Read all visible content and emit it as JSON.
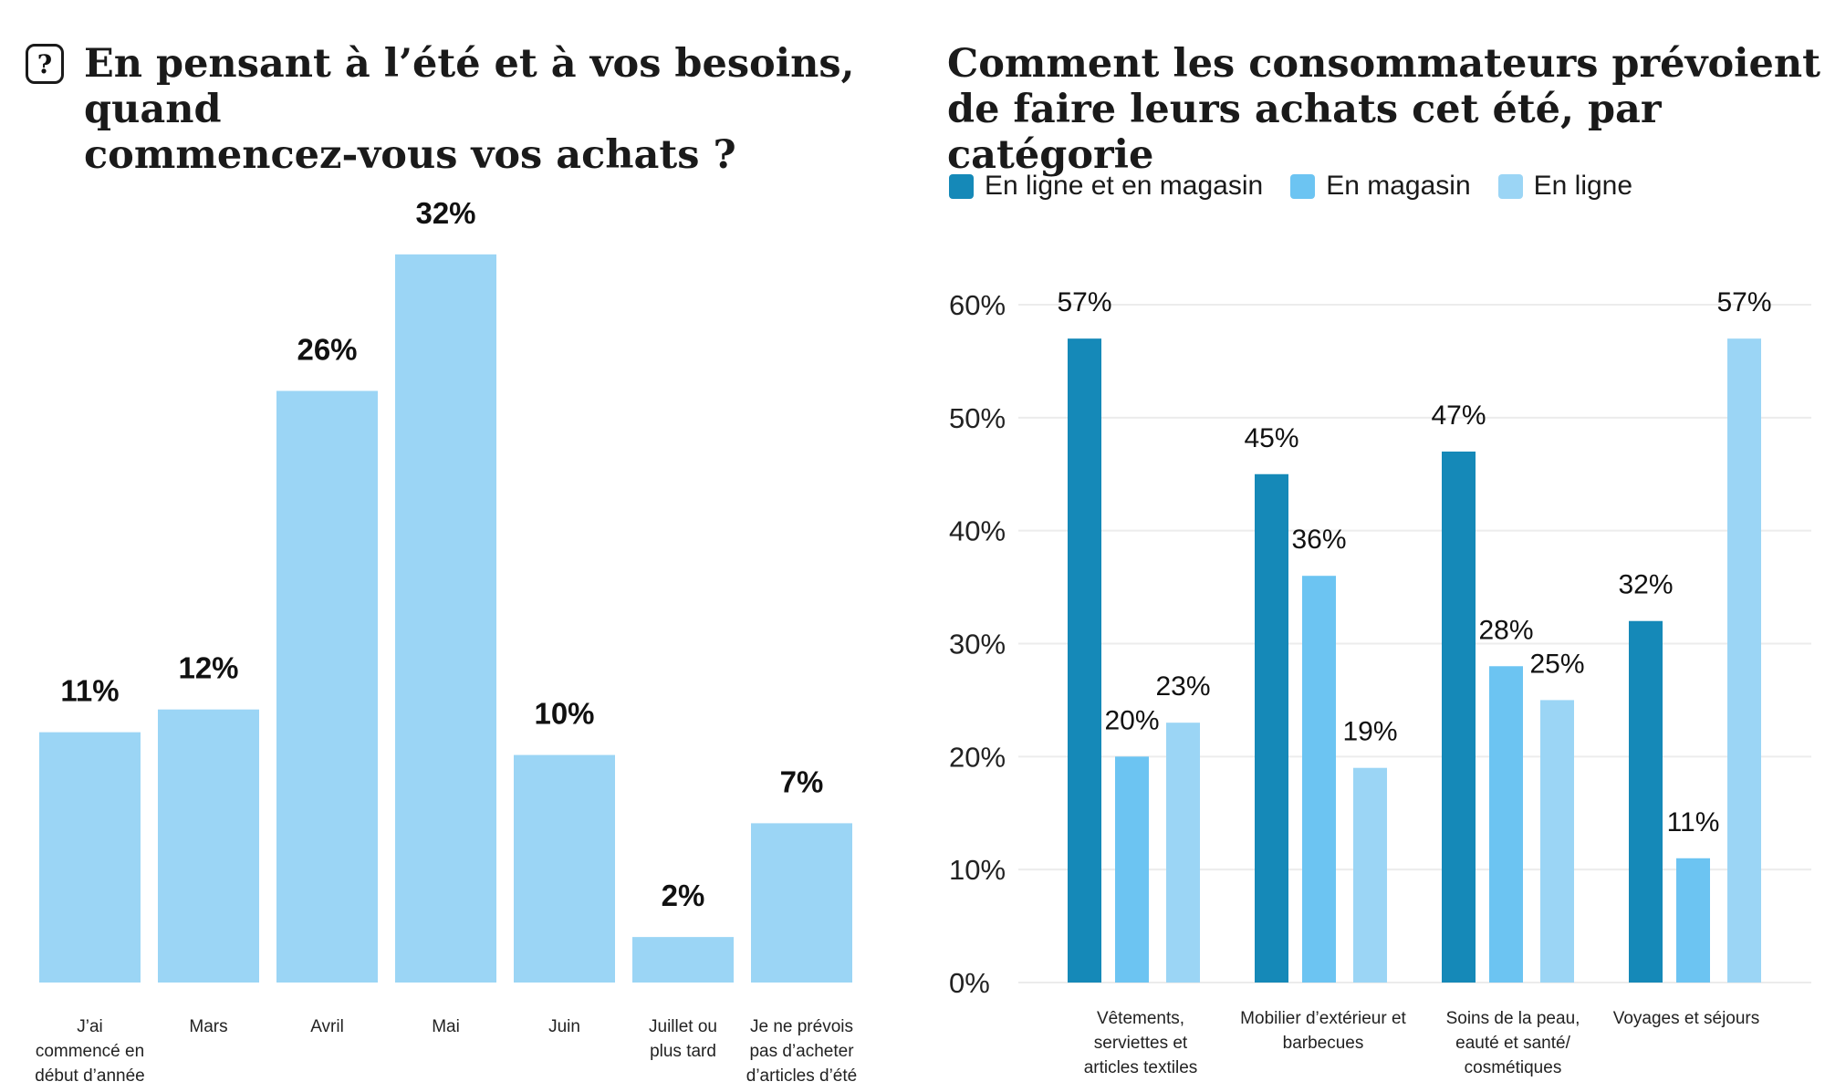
{
  "left_panel": {
    "icon": "question-mark-icon",
    "icon_glyph": "?",
    "title": "En pensant à l’été et à vos besoins, quand\ncommencez-vous vos achats ?"
  },
  "right_panel": {
    "title": "Comment les consommateurs prévoient\nde faire leurs achats cet été, par catégorie"
  },
  "colors": {
    "light_blue": "#9BD5F5",
    "dark_blue": "#1589B8",
    "mid_blue": "#6CC4F2"
  },
  "chart_data": [
    {
      "type": "bar",
      "title": "En pensant à l’été et à vos besoins, quand commencez-vous vos achats ?",
      "categories": [
        "J’ai\ncommencé en\ndébut d’année",
        "Mars",
        "Avril",
        "Mai",
        "Juin",
        "Juillet ou\nplus tard",
        "Je ne prévois\npas d’acheter\nd’articles d’été"
      ],
      "values": [
        11,
        12,
        26,
        32,
        10,
        2,
        7
      ],
      "value_labels": [
        "11%",
        "12%",
        "26%",
        "32%",
        "10%",
        "2%",
        "7%"
      ],
      "ylim": [
        0,
        35
      ],
      "grid": false,
      "color": "#9BD5F5"
    },
    {
      "type": "bar",
      "title": "Comment les consommateurs prévoient de faire leurs achats cet été, par catégorie",
      "categories": [
        "Vêtements,\nserviettes et\narticles textiles",
        "Mobilier d’extérieur et\nbarbecues",
        "Soins de la peau,\neauté et santé/\ncosmétiques",
        "Voyages et séjours"
      ],
      "series": [
        {
          "name": "En ligne et en magasin",
          "color": "#1589B8",
          "values": [
            57,
            45,
            47,
            32
          ],
          "value_labels": [
            "57%",
            "45%",
            "47%",
            "32%"
          ]
        },
        {
          "name": "En magasin",
          "color": "#6CC4F2",
          "values": [
            20,
            36,
            28,
            11
          ],
          "value_labels": [
            "20%",
            "36%",
            "28%",
            "11%"
          ]
        },
        {
          "name": "En ligne",
          "color": "#9BD5F5",
          "values": [
            23,
            19,
            25,
            57
          ],
          "value_labels": [
            "23%",
            "19%",
            "25%",
            "57%"
          ]
        }
      ],
      "y_ticks": [
        "0%",
        "10%",
        "20%",
        "30%",
        "40%",
        "50%",
        "60%"
      ],
      "ylim": [
        0,
        60
      ],
      "grid": true,
      "legend_position": "top-left"
    }
  ]
}
